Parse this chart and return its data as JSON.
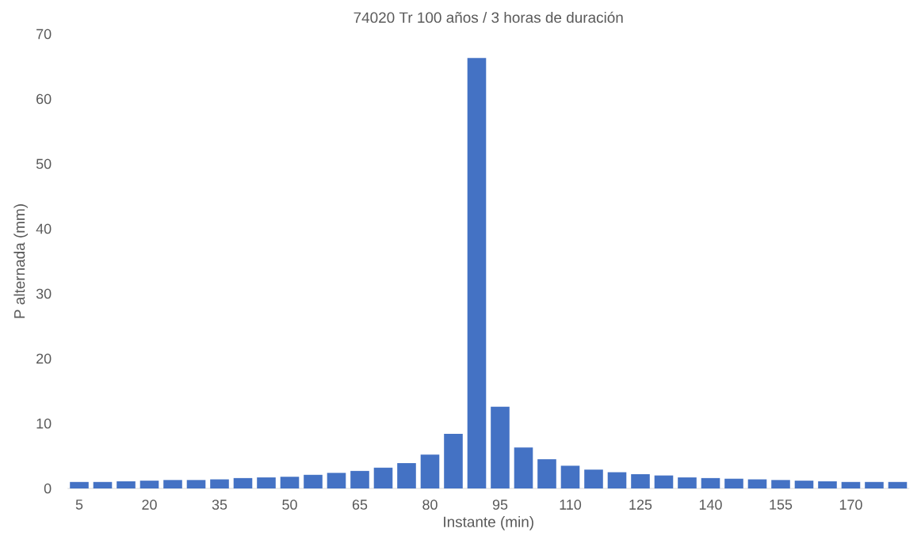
{
  "chart_data": {
    "type": "bar",
    "title": "74020 Tr 100 años / 3 horas de duración",
    "xlabel": "Instante (min)",
    "ylabel": "P alternada (mm)",
    "categories": [
      "5",
      null,
      null,
      "20",
      null,
      null,
      "35",
      null,
      null,
      "50",
      null,
      null,
      "65",
      null,
      null,
      "80",
      null,
      null,
      "95",
      null,
      null,
      "110",
      null,
      null,
      "125",
      null,
      null,
      "140",
      null,
      null,
      "155",
      null,
      null,
      "170",
      null,
      null
    ],
    "values": [
      1.0,
      1.0,
      1.1,
      1.2,
      1.3,
      1.3,
      1.4,
      1.6,
      1.7,
      1.8,
      2.1,
      2.4,
      2.7,
      3.2,
      3.9,
      5.2,
      8.4,
      66.3,
      12.6,
      6.3,
      4.5,
      3.5,
      2.9,
      2.5,
      2.2,
      2.0,
      1.7,
      1.6,
      1.5,
      1.4,
      1.3,
      1.2,
      1.1,
      1.0,
      1.0,
      1.0
    ],
    "color": "#4472c4",
    "ylim": [
      0,
      70
    ],
    "yticks": [
      0,
      10,
      20,
      30,
      40,
      50,
      60,
      70
    ]
  }
}
